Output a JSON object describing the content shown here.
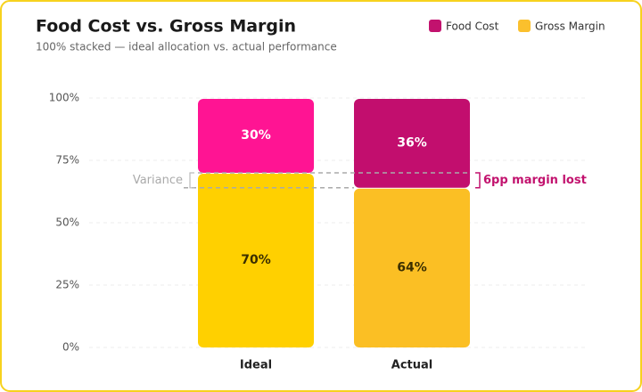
{
  "chart_data": {
    "type": "stacked_bar",
    "title": "Food Cost vs. Gross Margin",
    "subtitle": "100% stacked — ideal allocation vs. actual performance",
    "categories": [
      "Ideal",
      "Actual"
    ],
    "series": [
      {
        "name": "Gross Margin",
        "color": "#fbc02d",
        "colors": [
          "#ffd000",
          "#fbbf24"
        ],
        "values": [
          70,
          64
        ],
        "value_labels": [
          "70%",
          "64%"
        ]
      },
      {
        "name": "Food Cost",
        "color": "#c2126e",
        "colors": [
          "#ff1493",
          "#c20e6e"
        ],
        "values": [
          30,
          36
        ],
        "value_labels": [
          "30%",
          "36%"
        ]
      }
    ],
    "ylim": [
      0,
      100
    ],
    "yticks": [
      {
        "value": 0,
        "label": "0%"
      },
      {
        "value": 25,
        "label": "25%"
      },
      {
        "value": 50,
        "label": "50%"
      },
      {
        "value": 75,
        "label": "75%"
      },
      {
        "value": 100,
        "label": "100%"
      }
    ],
    "grid": true,
    "annotations": {
      "variance_label": "Variance",
      "variance_note": "6pp margin lost"
    }
  }
}
